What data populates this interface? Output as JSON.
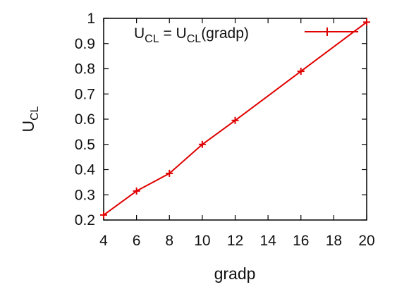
{
  "chart_data": {
    "type": "line",
    "xlabel": "gradp",
    "ylabel": {
      "base": "U",
      "sub": "CL"
    },
    "xlim": [
      4,
      20
    ],
    "ylim": [
      0.2,
      1.0
    ],
    "xticks": [
      "4",
      "6",
      "8",
      "10",
      "12",
      "14",
      "16",
      "18",
      "20"
    ],
    "yticks": [
      "0.2",
      "0.3",
      "0.4",
      "0.5",
      "0.6",
      "0.7",
      "0.8",
      "0.9",
      "1"
    ],
    "grid": false,
    "legend_position": "top-right",
    "series": [
      {
        "legend": {
          "b1": "U",
          "s1": "CL",
          "mid": " = U",
          "s2": "CL",
          "tail": "(gradp)"
        },
        "color": "#e00000",
        "marker": "plus",
        "x": [
          4,
          6,
          8,
          10,
          12,
          16,
          20
        ],
        "y": [
          0.22,
          0.315,
          0.385,
          0.5,
          0.595,
          0.79,
          0.985
        ]
      }
    ]
  }
}
